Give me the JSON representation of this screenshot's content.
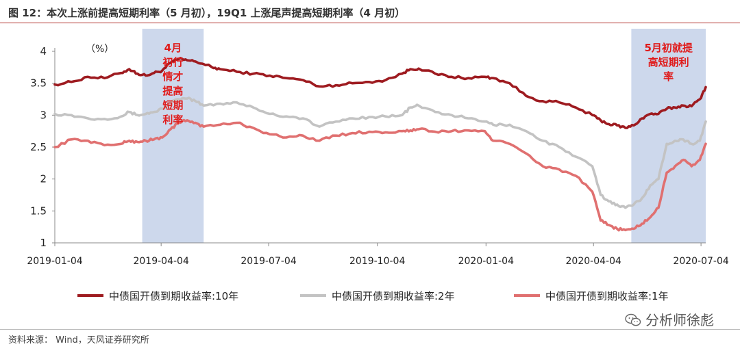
{
  "title": "图 12：本次上涨前提高短期利率（5 月初），19Q1 上涨尾声提高短期利率（4 月初）",
  "source": "资料来源： Wind，天风证券研究所",
  "watermark": "分析师徐彪",
  "chart_data": {
    "type": "line",
    "unit_label": "（%）",
    "ylim": [
      1,
      4
    ],
    "yticks": [
      "1",
      "1.5",
      "2",
      "2.5",
      "3",
      "3.5",
      "4"
    ],
    "xlim": [
      "2019-01-04",
      "2020-07-08"
    ],
    "xticks": [
      "2019-01-04",
      "2019-04-04",
      "2019-07-04",
      "2019-10-04",
      "2020-01-04",
      "2020-04-04",
      "2020-07-04"
    ],
    "legend_position": "bottom",
    "highlights": [
      {
        "start": "2019-03-19",
        "end": "2019-05-10",
        "label": "4月初行情才提高短期利率",
        "color": "#cdd8ec"
      },
      {
        "start": "2020-05-06",
        "end": "2020-07-08",
        "label": "5月初就提高短期利率",
        "color": "#cdd8ec"
      }
    ],
    "series": [
      {
        "name": "中债国开债到期收益率:10年",
        "color": "#9e1b20",
        "points": [
          [
            "2019-01-04",
            3.48
          ],
          [
            "2019-01-18",
            3.52
          ],
          [
            "2019-02-01",
            3.6
          ],
          [
            "2019-02-15",
            3.58
          ],
          [
            "2019-03-01",
            3.66
          ],
          [
            "2019-03-08",
            3.72
          ],
          [
            "2019-03-15",
            3.65
          ],
          [
            "2019-03-22",
            3.62
          ],
          [
            "2019-03-29",
            3.66
          ],
          [
            "2019-04-05",
            3.7
          ],
          [
            "2019-04-12",
            3.82
          ],
          [
            "2019-04-19",
            3.88
          ],
          [
            "2019-04-26",
            3.86
          ],
          [
            "2019-05-03",
            3.84
          ],
          [
            "2019-05-10",
            3.8
          ],
          [
            "2019-05-17",
            3.75
          ],
          [
            "2019-05-24",
            3.72
          ],
          [
            "2019-06-07",
            3.68
          ],
          [
            "2019-06-21",
            3.65
          ],
          [
            "2019-07-05",
            3.62
          ],
          [
            "2019-07-19",
            3.58
          ],
          [
            "2019-08-02",
            3.55
          ],
          [
            "2019-08-16",
            3.45
          ],
          [
            "2019-08-30",
            3.47
          ],
          [
            "2019-09-13",
            3.5
          ],
          [
            "2019-09-27",
            3.52
          ],
          [
            "2019-10-11",
            3.55
          ],
          [
            "2019-10-25",
            3.65
          ],
          [
            "2019-11-01",
            3.72
          ],
          [
            "2019-11-08",
            3.73
          ],
          [
            "2019-11-22",
            3.65
          ],
          [
            "2019-12-06",
            3.6
          ],
          [
            "2019-12-20",
            3.58
          ],
          [
            "2020-01-03",
            3.6
          ],
          [
            "2020-01-10",
            3.58
          ],
          [
            "2020-01-24",
            3.5
          ],
          [
            "2020-02-07",
            3.3
          ],
          [
            "2020-02-21",
            3.22
          ],
          [
            "2020-03-06",
            3.2
          ],
          [
            "2020-03-20",
            3.12
          ],
          [
            "2020-04-03",
            3.0
          ],
          [
            "2020-04-10",
            2.92
          ],
          [
            "2020-04-17",
            2.86
          ],
          [
            "2020-04-24",
            2.84
          ],
          [
            "2020-05-01",
            2.8
          ],
          [
            "2020-05-08",
            2.84
          ],
          [
            "2020-05-15",
            2.95
          ],
          [
            "2020-05-22",
            3.02
          ],
          [
            "2020-05-29",
            3.02
          ],
          [
            "2020-06-05",
            3.1
          ],
          [
            "2020-06-12",
            3.12
          ],
          [
            "2020-06-19",
            3.15
          ],
          [
            "2020-06-26",
            3.14
          ],
          [
            "2020-07-03",
            3.25
          ],
          [
            "2020-07-08",
            3.44
          ]
        ]
      },
      {
        "name": "中债国开债到期收益率:2年",
        "color": "#c3c3c3",
        "points": [
          [
            "2019-01-04",
            3.02
          ],
          [
            "2019-01-18",
            3.0
          ],
          [
            "2019-02-01",
            2.95
          ],
          [
            "2019-02-15",
            2.94
          ],
          [
            "2019-03-01",
            2.98
          ],
          [
            "2019-03-08",
            3.05
          ],
          [
            "2019-03-15",
            3.0
          ],
          [
            "2019-03-22",
            3.02
          ],
          [
            "2019-03-29",
            3.05
          ],
          [
            "2019-04-05",
            3.1
          ],
          [
            "2019-04-12",
            3.2
          ],
          [
            "2019-04-19",
            3.25
          ],
          [
            "2019-04-26",
            3.26
          ],
          [
            "2019-05-03",
            3.22
          ],
          [
            "2019-05-10",
            3.15
          ],
          [
            "2019-05-24",
            3.18
          ],
          [
            "2019-06-07",
            3.2
          ],
          [
            "2019-06-21",
            3.12
          ],
          [
            "2019-07-05",
            3.02
          ],
          [
            "2019-07-19",
            2.98
          ],
          [
            "2019-08-02",
            2.95
          ],
          [
            "2019-08-16",
            2.82
          ],
          [
            "2019-08-30",
            2.9
          ],
          [
            "2019-09-13",
            2.95
          ],
          [
            "2019-09-27",
            2.97
          ],
          [
            "2019-10-11",
            2.98
          ],
          [
            "2019-10-25",
            3.0
          ],
          [
            "2019-11-01",
            3.12
          ],
          [
            "2019-11-08",
            3.15
          ],
          [
            "2019-11-22",
            3.05
          ],
          [
            "2019-12-06",
            3.0
          ],
          [
            "2019-12-20",
            2.95
          ],
          [
            "2020-01-03",
            2.9
          ],
          [
            "2020-01-10",
            2.85
          ],
          [
            "2020-01-24",
            2.85
          ],
          [
            "2020-02-07",
            2.75
          ],
          [
            "2020-02-21",
            2.6
          ],
          [
            "2020-03-06",
            2.5
          ],
          [
            "2020-03-20",
            2.35
          ],
          [
            "2020-04-03",
            2.2
          ],
          [
            "2020-04-10",
            1.75
          ],
          [
            "2020-04-17",
            1.65
          ],
          [
            "2020-04-24",
            1.6
          ],
          [
            "2020-05-01",
            1.55
          ],
          [
            "2020-05-08",
            1.6
          ],
          [
            "2020-05-15",
            1.7
          ],
          [
            "2020-05-22",
            1.9
          ],
          [
            "2020-05-29",
            2.0
          ],
          [
            "2020-06-05",
            2.55
          ],
          [
            "2020-06-12",
            2.6
          ],
          [
            "2020-06-19",
            2.62
          ],
          [
            "2020-06-26",
            2.55
          ],
          [
            "2020-07-03",
            2.6
          ],
          [
            "2020-07-08",
            2.9
          ]
        ]
      },
      {
        "name": "中债国开债到期收益率:1年",
        "color": "#e07070",
        "points": [
          [
            "2019-01-04",
            2.5
          ],
          [
            "2019-01-18",
            2.62
          ],
          [
            "2019-02-01",
            2.6
          ],
          [
            "2019-02-15",
            2.53
          ],
          [
            "2019-03-01",
            2.55
          ],
          [
            "2019-03-08",
            2.6
          ],
          [
            "2019-03-15",
            2.58
          ],
          [
            "2019-03-22",
            2.6
          ],
          [
            "2019-03-29",
            2.62
          ],
          [
            "2019-04-05",
            2.65
          ],
          [
            "2019-04-12",
            2.78
          ],
          [
            "2019-04-19",
            2.88
          ],
          [
            "2019-04-26",
            2.92
          ],
          [
            "2019-05-03",
            2.88
          ],
          [
            "2019-05-10",
            2.82
          ],
          [
            "2019-05-24",
            2.85
          ],
          [
            "2019-06-07",
            2.88
          ],
          [
            "2019-06-21",
            2.8
          ],
          [
            "2019-07-05",
            2.7
          ],
          [
            "2019-07-19",
            2.65
          ],
          [
            "2019-08-02",
            2.68
          ],
          [
            "2019-08-16",
            2.6
          ],
          [
            "2019-08-30",
            2.68
          ],
          [
            "2019-09-13",
            2.72
          ],
          [
            "2019-09-27",
            2.74
          ],
          [
            "2019-10-11",
            2.73
          ],
          [
            "2019-10-25",
            2.75
          ],
          [
            "2019-11-01",
            2.76
          ],
          [
            "2019-11-08",
            2.78
          ],
          [
            "2019-11-22",
            2.74
          ],
          [
            "2019-12-06",
            2.75
          ],
          [
            "2019-12-20",
            2.76
          ],
          [
            "2020-01-03",
            2.75
          ],
          [
            "2020-01-10",
            2.6
          ],
          [
            "2020-01-24",
            2.55
          ],
          [
            "2020-02-07",
            2.4
          ],
          [
            "2020-02-21",
            2.2
          ],
          [
            "2020-03-06",
            2.15
          ],
          [
            "2020-03-20",
            2.05
          ],
          [
            "2020-04-03",
            1.8
          ],
          [
            "2020-04-10",
            1.35
          ],
          [
            "2020-04-17",
            1.28
          ],
          [
            "2020-04-24",
            1.22
          ],
          [
            "2020-05-01",
            1.2
          ],
          [
            "2020-05-08",
            1.22
          ],
          [
            "2020-05-15",
            1.3
          ],
          [
            "2020-05-22",
            1.4
          ],
          [
            "2020-05-29",
            1.55
          ],
          [
            "2020-06-05",
            2.1
          ],
          [
            "2020-06-12",
            2.2
          ],
          [
            "2020-06-19",
            2.3
          ],
          [
            "2020-06-26",
            2.2
          ],
          [
            "2020-07-03",
            2.3
          ],
          [
            "2020-07-08",
            2.55
          ]
        ]
      }
    ]
  }
}
